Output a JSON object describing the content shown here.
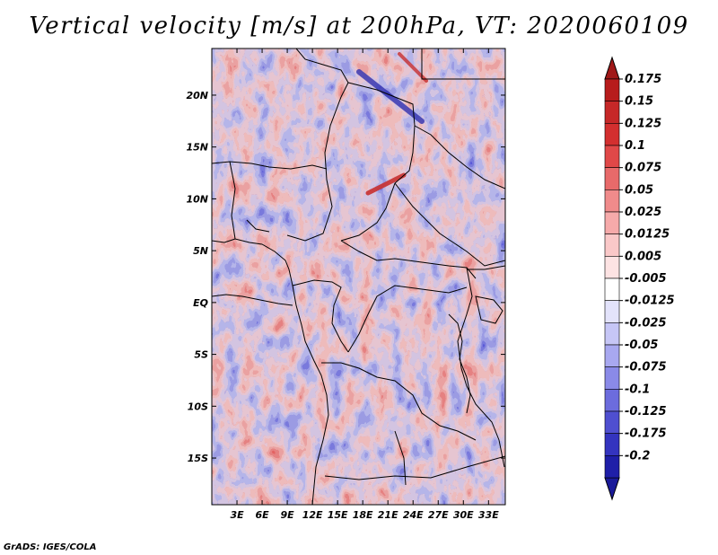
{
  "title": "Vertical velocity [m/s] at 200hPa, VT: 2020060109",
  "footer": "GrADS: IGES/COLA",
  "map": {
    "lon_range": [
      0,
      35
    ],
    "lat_range": [
      -19.5,
      24.5
    ],
    "lat_ticks": [
      {
        "value": 20,
        "label": "20N"
      },
      {
        "value": 15,
        "label": "15N"
      },
      {
        "value": 10,
        "label": "10N"
      },
      {
        "value": 5,
        "label": "5N"
      },
      {
        "value": 0,
        "label": "EQ"
      },
      {
        "value": -5,
        "label": "5S"
      },
      {
        "value": -10,
        "label": "10S"
      },
      {
        "value": -15,
        "label": "15S"
      }
    ],
    "lon_ticks": [
      {
        "value": 3,
        "label": "3E"
      },
      {
        "value": 6,
        "label": "6E"
      },
      {
        "value": 9,
        "label": "9E"
      },
      {
        "value": 12,
        "label": "12E"
      },
      {
        "value": 15,
        "label": "15E"
      },
      {
        "value": 18,
        "label": "18E"
      },
      {
        "value": 21,
        "label": "21E"
      },
      {
        "value": 24,
        "label": "24E"
      },
      {
        "value": 27,
        "label": "27E"
      },
      {
        "value": 30,
        "label": "30E"
      },
      {
        "value": 33,
        "label": "33E"
      }
    ]
  },
  "colorbar": {
    "levels": [
      {
        "label": "0.175",
        "color": "#b71c1c"
      },
      {
        "label": "0.15",
        "color": "#c62828"
      },
      {
        "label": "0.125",
        "color": "#d32f2f"
      },
      {
        "label": "0.1",
        "color": "#e04848"
      },
      {
        "label": "0.075",
        "color": "#e86a6a"
      },
      {
        "label": "0.05",
        "color": "#f08b8b"
      },
      {
        "label": "0.025",
        "color": "#f6aaaa"
      },
      {
        "label": "0.0125",
        "color": "#fac8c8"
      },
      {
        "label": "0.005",
        "color": "#fde3e3"
      },
      {
        "label": "-0.005",
        "color": "#ffffff"
      },
      {
        "label": "-0.0125",
        "color": "#e3e3fb"
      },
      {
        "label": "-0.025",
        "color": "#c6c6f6"
      },
      {
        "label": "-0.05",
        "color": "#a8a8f0"
      },
      {
        "label": "-0.075",
        "color": "#8a8ae8"
      },
      {
        "label": "-0.1",
        "color": "#6c6cdd"
      },
      {
        "label": "-0.125",
        "color": "#4f4fd0"
      },
      {
        "label": "-0.175",
        "color": "#3434bf"
      },
      {
        "label": "-0.2",
        "color": "#1f1fa8"
      }
    ],
    "top_color": "#a01818",
    "bottom_color": "#1a1a99"
  }
}
